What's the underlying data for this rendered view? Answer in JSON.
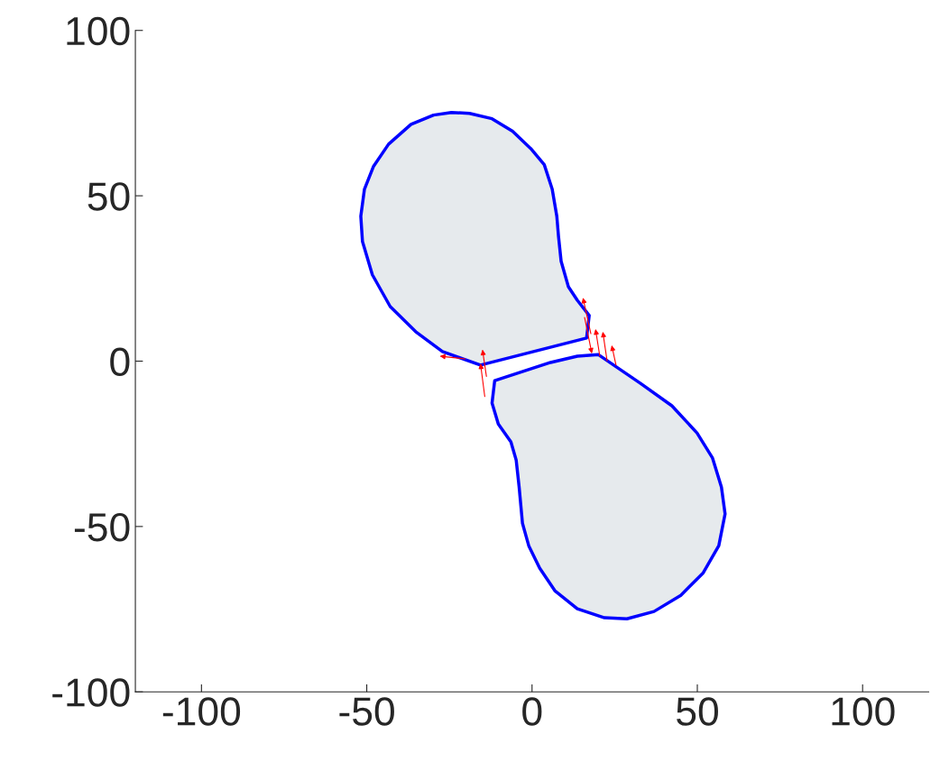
{
  "chart_data": {
    "type": "area",
    "grid": false,
    "line_style": "solid",
    "xlim": [
      -120,
      120
    ],
    "ylim": [
      -100,
      100
    ],
    "xticks": [
      -100,
      -50,
      0,
      50,
      100
    ],
    "yticks": [
      -100,
      -50,
      0,
      50,
      100
    ],
    "series": [
      {
        "color": "#0000ff",
        "x": [
          -15.6,
          -27.1,
          -35.2,
          -42.9,
          -48.3,
          -51.3,
          -51.8,
          -50.7,
          -48.0,
          -43.4,
          -36.6,
          -29.8,
          -24.4,
          -18.9,
          -12.1,
          -5.9,
          -0.4,
          3.7,
          6.1,
          7.5,
          8.0,
          8.8,
          11.0,
          13.7,
          17.3,
          16.5,
          -15.6
        ],
        "values": [
          -1.2,
          2.9,
          8.9,
          16.5,
          26.1,
          36.2,
          43.8,
          52.0,
          58.8,
          65.6,
          71.6,
          74.4,
          75.2,
          74.9,
          73.3,
          69.5,
          64.3,
          59.4,
          52.0,
          43.8,
          37.8,
          30.2,
          22.5,
          18.4,
          13.8,
          7.0,
          -1.2
        ]
      },
      {
        "color": "#0000ff",
        "x": [
          -11.3,
          -12.1,
          -10.2,
          -6.4,
          -4.8,
          -3.9,
          -2.9,
          -1.0,
          2.3,
          6.9,
          13.7,
          21.9,
          28.7,
          36.9,
          45.0,
          51.8,
          56.5,
          58.4,
          57.3,
          54.6,
          49.9,
          42.3,
          32.8,
          20.0,
          13.7,
          5.6,
          -11.3
        ],
        "values": [
          -5.9,
          -12.7,
          -19.0,
          -24.4,
          -29.9,
          -38.1,
          -49.0,
          -55.8,
          -62.6,
          -69.4,
          -74.9,
          -77.6,
          -77.9,
          -75.7,
          -70.8,
          -64.0,
          -55.8,
          -46.2,
          -38.1,
          -29.3,
          -21.7,
          -13.5,
          -6.7,
          2.0,
          1.5,
          -0.4,
          -5.9
        ]
      }
    ]
  }
}
